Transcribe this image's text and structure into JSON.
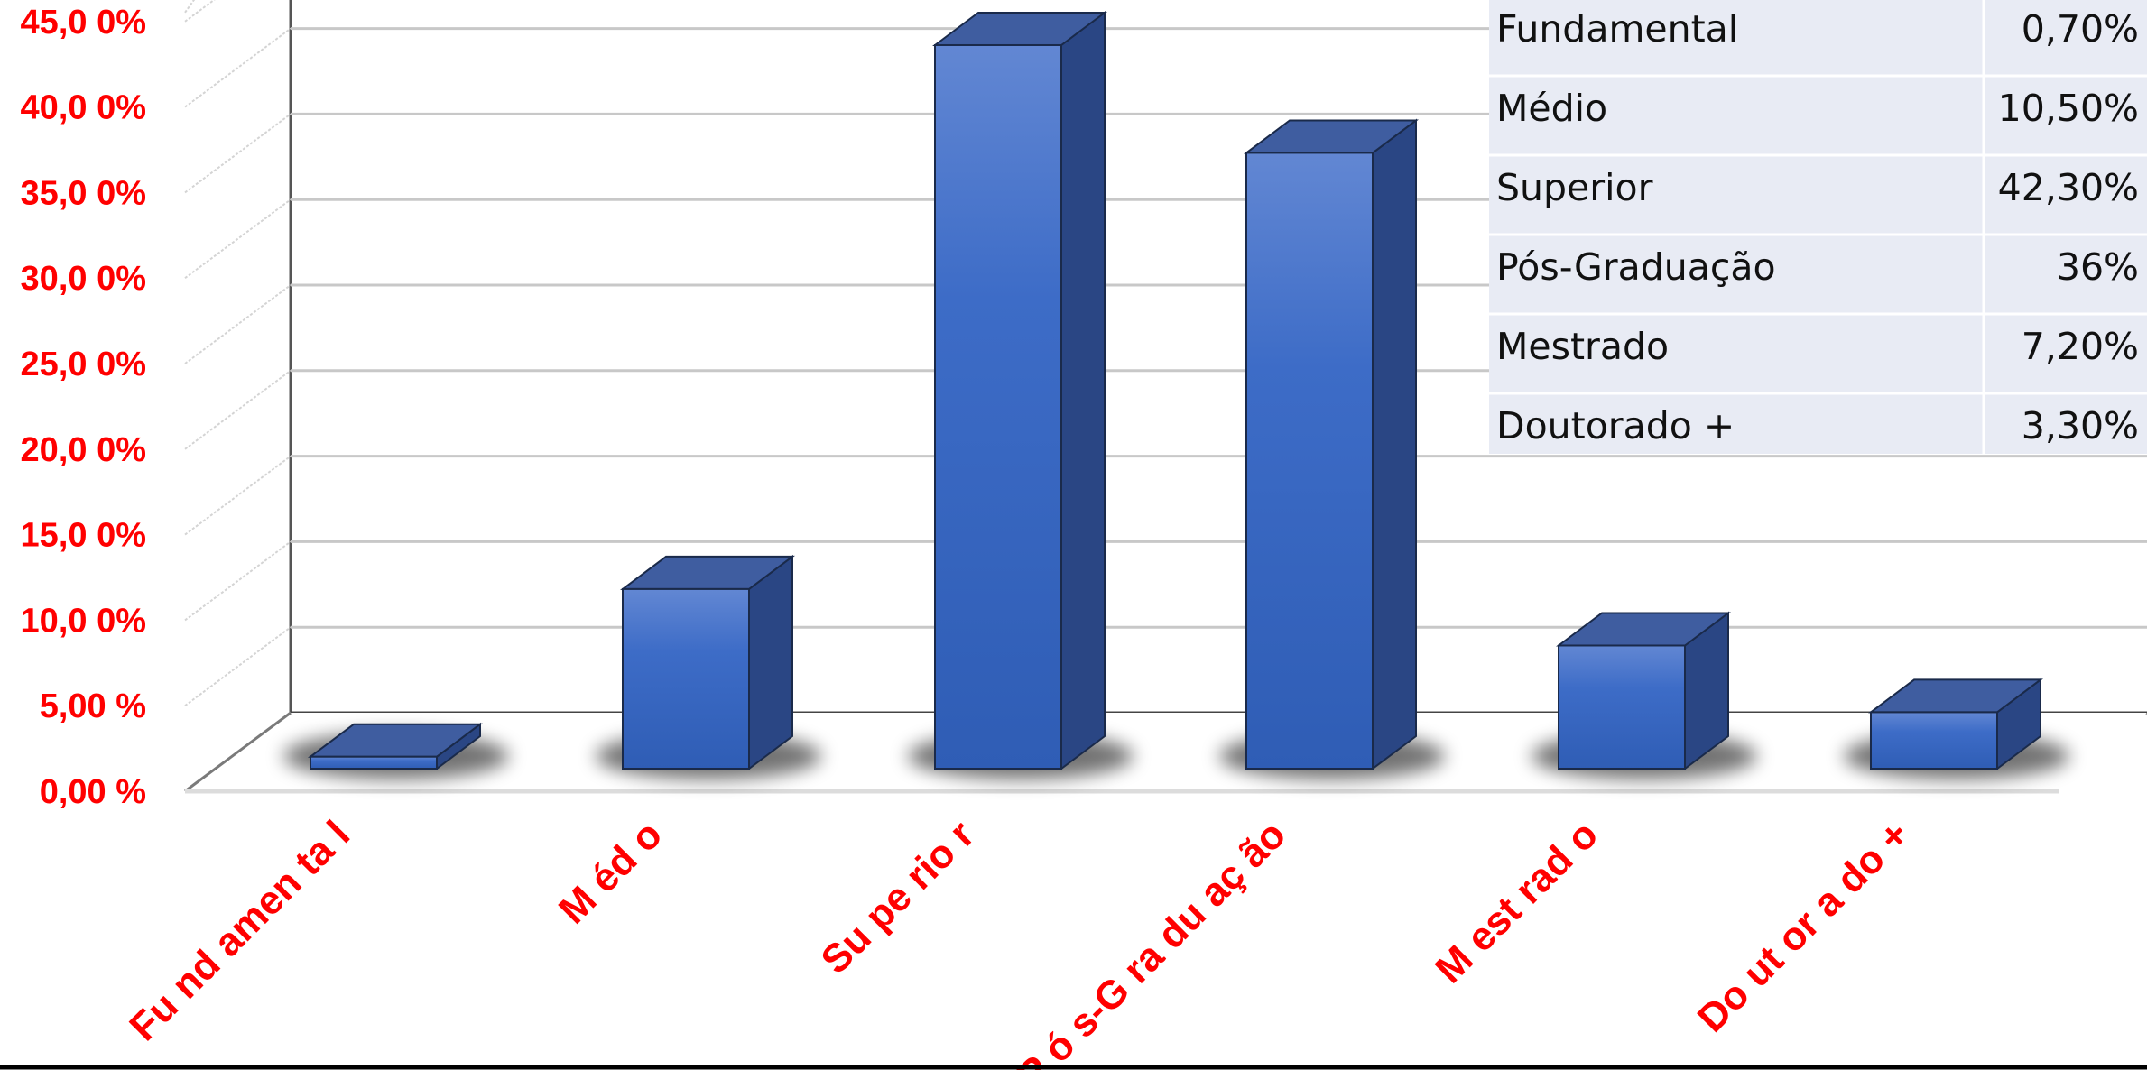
{
  "chart_data": {
    "type": "bar",
    "categories": [
      "Fundamental",
      "Médio",
      "Superior",
      "Pós-Graduação",
      "Mestrado",
      "Doutorado +"
    ],
    "values": [
      0.7,
      10.5,
      42.3,
      36,
      7.2,
      3.3
    ],
    "x_tick_labels": [
      "Fu nd amen ta l",
      "M éd o",
      "Su pe rio r",
      "P ó s-G ra du aç ão",
      "M est rad o",
      "Do ut or a do +"
    ],
    "y_tick_labels": [
      "0,00 %",
      "5,00 %",
      "10,0 0%",
      "15,0 0%",
      "20,0 0%",
      "25,0 0%",
      "30,0 0%",
      "35,0 0%",
      "40,0 0%",
      "45,0 0%"
    ],
    "ylim": [
      0,
      45
    ],
    "grid": true,
    "table": {
      "rows": [
        {
          "label": "Fundamental",
          "value": "0,70%"
        },
        {
          "label": "Médio",
          "value": "10,50%"
        },
        {
          "label": "Superior",
          "value": "42,30%"
        },
        {
          "label": "Pós-Graduação",
          "value": "36%"
        },
        {
          "label": "Mestrado",
          "value": "7,20%"
        },
        {
          "label": "Doutorado +",
          "value": "3,30%"
        }
      ]
    },
    "colors": {
      "bar_front": "#3a68c2",
      "bar_top": "#3f5da0",
      "bar_side": "#2a4684",
      "tick_label": "#ff0000",
      "table_bg": "#e8ebf4"
    }
  }
}
